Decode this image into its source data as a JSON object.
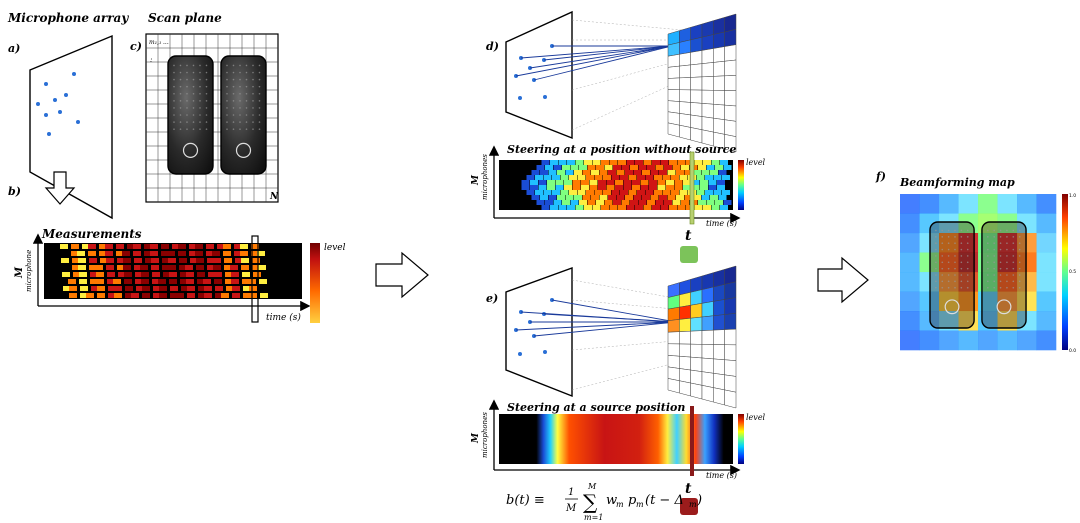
{
  "panels": {
    "a": "a)",
    "b": "b)",
    "c": "c)",
    "d": "d)",
    "e": "e)",
    "f": "f)"
  },
  "titles": {
    "mic_array": "Microphone array",
    "scan_plane": "Scan plane",
    "measurements": "Measurements",
    "steer_no_source": "Steering at a position without source",
    "steer_source": "Steering at a source position",
    "beam_map": "Beamforming map"
  },
  "axes": {
    "level": "level",
    "time": "time (s)",
    "M": "M",
    "microphones": "microphones",
    "microphone": "microphone",
    "t": "t",
    "N": "N"
  },
  "grid_corner_labels": {
    "top_left": "m₁,₁",
    "top_left_2": "...",
    "left_col": ":"
  },
  "formula": {
    "lhs": "b(t) ≡",
    "frac_num": "1",
    "frac_den": "M",
    "sum_sym": "∑",
    "sum_top": "M",
    "sum_bottom": "m=1",
    "rhs": "w",
    "rhs_sub": "m",
    "p": "p",
    "p_sub": "m",
    "arg": "(t − Δ",
    "arg_sub": "m",
    "arg_close": ")"
  },
  "colorbar_ticks": {
    "top": "1.0",
    "mid": "0.5",
    "bottom": "0.0"
  },
  "colors": {
    "marker_green": "#7cc35a",
    "marker_red": "#9b1c1c",
    "arrow": "#ffffff",
    "dot": "#2a6fd6"
  }
}
